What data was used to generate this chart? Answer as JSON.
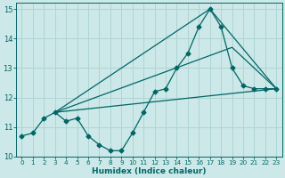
{
  "xlabel": "Humidex (Indice chaleur)",
  "xlim": [
    -0.5,
    23.5
  ],
  "ylim": [
    10,
    15.2
  ],
  "yticks": [
    10,
    11,
    12,
    13,
    14,
    15
  ],
  "xticks": [
    0,
    1,
    2,
    3,
    4,
    5,
    6,
    7,
    8,
    9,
    10,
    11,
    12,
    13,
    14,
    15,
    16,
    17,
    18,
    19,
    20,
    21,
    22,
    23
  ],
  "background_color": "#cce8e8",
  "grid_color": "#b0d4d4",
  "line_color": "#006666",
  "line1_x": [
    0,
    1,
    2,
    3,
    4,
    5,
    6,
    7,
    8,
    9,
    10,
    11,
    12,
    13,
    14,
    15,
    16,
    17,
    18,
    19,
    20,
    21,
    22,
    23
  ],
  "line1_y": [
    10.7,
    10.8,
    11.3,
    11.5,
    11.2,
    11.3,
    10.7,
    10.4,
    10.2,
    10.2,
    10.8,
    11.5,
    12.2,
    12.3,
    13.0,
    13.5,
    14.4,
    15.0,
    14.4,
    13.0,
    12.4,
    12.3,
    12.3,
    12.3
  ],
  "line2_x": [
    3,
    23
  ],
  "line2_y": [
    11.5,
    12.3
  ],
  "line3_x": [
    3,
    17,
    23
  ],
  "line3_y": [
    11.5,
    15.0,
    12.3
  ],
  "line4_x": [
    3,
    19,
    23
  ],
  "line4_y": [
    11.5,
    13.7,
    12.3
  ]
}
